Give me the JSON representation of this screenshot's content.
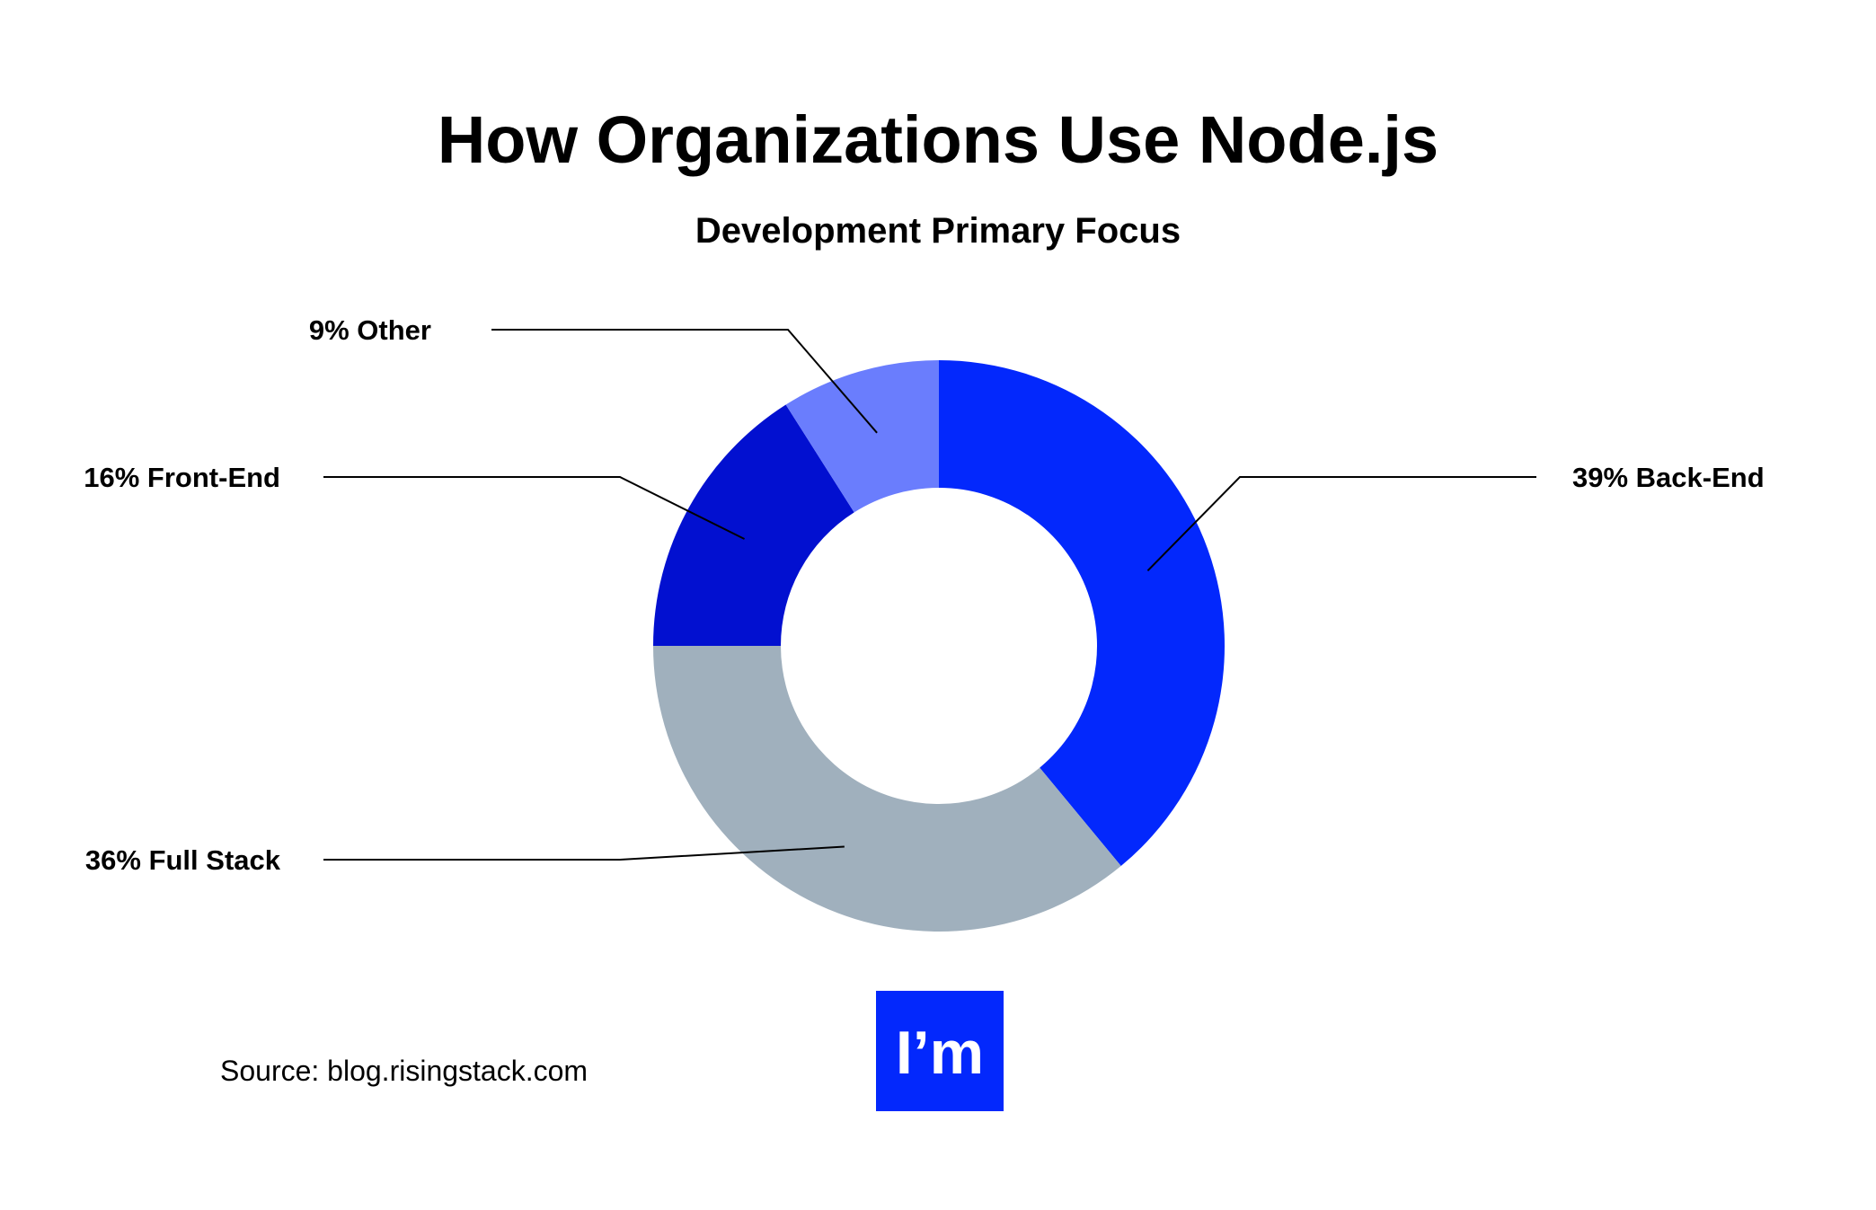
{
  "chart_data": {
    "type": "pie",
    "style": "donut",
    "title": "How Organizations Use Node.js",
    "subtitle": "Development Primary Focus",
    "slices": [
      {
        "label": "39% Back-End",
        "name": "Back-End",
        "value": 39,
        "color": "#0328fc"
      },
      {
        "label": "36% Full Stack",
        "name": "Full Stack",
        "value": 36,
        "color": "#a0b0bd"
      },
      {
        "label": "16% Front-End",
        "name": "Front-End",
        "value": 16,
        "color": "#0210d0"
      },
      {
        "label": "9% Other",
        "name": "Other",
        "value": 9,
        "color": "#6a7dfd"
      }
    ],
    "start_angle_deg": 0,
    "direction": "clockwise",
    "legend": "none (callout labels with leader lines)"
  },
  "source": "Source: blog.risingstack.com",
  "logo": {
    "text": "I’m",
    "background": "#0328fc",
    "color": "#ffffff"
  },
  "colors": {
    "background": "#ffffff",
    "text": "#000000"
  }
}
